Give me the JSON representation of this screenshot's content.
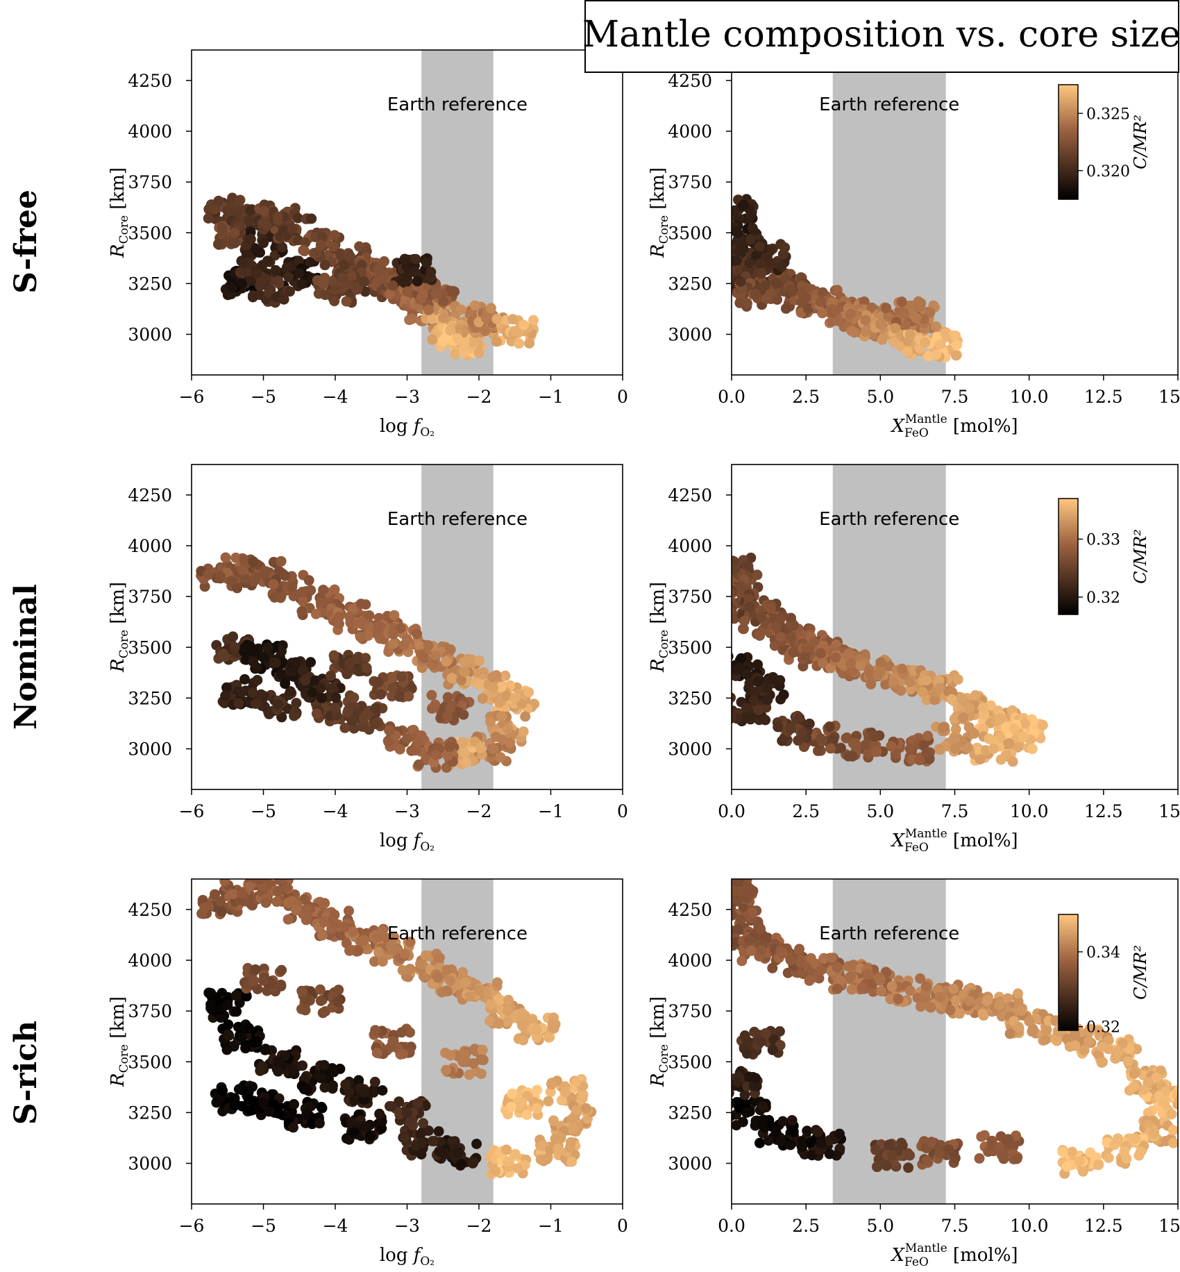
{
  "title": "Mantle  composition vs. core size",
  "rows": [
    {
      "label": "S-free"
    },
    {
      "label": "Nominal"
    },
    {
      "label": "S-rich"
    }
  ],
  "band_label": "Earth reference",
  "colors": {
    "band": "#c0c0c0",
    "cmap_low": "#000000",
    "cmap_mid": "#9c6140",
    "cmap_high": "#ffc77f",
    "axis": "#000000",
    "background": "#ffffff"
  },
  "chart_data": [
    {
      "type": "scatter",
      "row": 0,
      "col": 0,
      "xlabel": "log f_O2",
      "ylabel": "R_Core [km]",
      "xlim": [
        -6,
        0
      ],
      "ylim": [
        2800,
        4400
      ],
      "xticks": [
        -6,
        -5,
        -4,
        -3,
        -2,
        -1,
        0
      ],
      "xtick_labels": [
        "−6",
        "−5",
        "−4",
        "−3",
        "−2",
        "−1",
        "0"
      ],
      "yticks": [
        3000,
        3250,
        3500,
        3750,
        4000,
        4250
      ],
      "ytick_labels": [
        "3000",
        "3250",
        "3500",
        "3750",
        "4000",
        "4250"
      ],
      "band": [
        -2.8,
        -1.8
      ],
      "band_label": "Earth reference",
      "points": [
        [
          -5.5,
          3610
        ],
        [
          -5.4,
          3500
        ],
        [
          -5.2,
          3560
        ],
        [
          -5.0,
          3450
        ],
        [
          -4.8,
          3580
        ],
        [
          -5.3,
          3250
        ],
        [
          -4.6,
          3520
        ],
        [
          -4.5,
          3300
        ],
        [
          -4.2,
          3440
        ],
        [
          -4.0,
          3220
        ],
        [
          -3.8,
          3380
        ],
        [
          -3.6,
          3260
        ],
        [
          -3.4,
          3320
        ],
        [
          -3.2,
          3240
        ],
        [
          -3.0,
          3210
        ],
        [
          -2.8,
          3180
        ],
        [
          -2.7,
          3120
        ],
        [
          -2.5,
          3080
        ],
        [
          -2.4,
          3020
        ],
        [
          -2.3,
          2980
        ],
        [
          -2.2,
          2960
        ],
        [
          -2.0,
          3060
        ],
        [
          -1.9,
          3080
        ],
        [
          -1.5,
          3015
        ],
        [
          -2.6,
          3200
        ],
        [
          -5.1,
          3300
        ],
        [
          -4.9,
          3220
        ],
        [
          -3.9,
          3280
        ],
        [
          -2.9,
          3310
        ]
      ],
      "point_colors": [
        0.35,
        0.45,
        0.3,
        0.2,
        0.4,
        0.1,
        0.35,
        0.15,
        0.45,
        0.4,
        0.4,
        0.35,
        0.5,
        0.45,
        0.55,
        0.6,
        0.65,
        0.8,
        0.9,
        0.95,
        0.95,
        0.85,
        0.7,
        0.9,
        0.55,
        0.25,
        0.3,
        0.4,
        0.2
      ],
      "colorbar": null
    },
    {
      "type": "scatter",
      "row": 0,
      "col": 1,
      "xlabel": "X_FeO^Mantle [mol%]",
      "ylabel": "R_Core [km]",
      "xlim": [
        0,
        15
      ],
      "ylim": [
        2800,
        4400
      ],
      "xticks": [
        0,
        2.5,
        5,
        7.5,
        10,
        12.5,
        15
      ],
      "xtick_labels": [
        "0.0",
        "2.5",
        "5.0",
        "7.5",
        "10.0",
        "12.5",
        "15.0"
      ],
      "yticks": [
        3000,
        3250,
        3500,
        3750,
        4000,
        4250
      ],
      "ytick_labels": [
        "3000",
        "3250",
        "3500",
        "3750",
        "4000",
        "4250"
      ],
      "band": [
        3.4,
        7.2
      ],
      "band_label": "Earth reference",
      "points": [
        [
          0.1,
          3610
        ],
        [
          0.2,
          3500
        ],
        [
          0.4,
          3420
        ],
        [
          0.6,
          3350
        ],
        [
          0.3,
          3260
        ],
        [
          1.0,
          3300
        ],
        [
          1.5,
          3250
        ],
        [
          2.0,
          3220
        ],
        [
          2.5,
          3180
        ],
        [
          3.0,
          3160
        ],
        [
          3.5,
          3120
        ],
        [
          4.0,
          3100
        ],
        [
          4.5,
          3070
        ],
        [
          5.0,
          3050
        ],
        [
          5.5,
          3030
        ],
        [
          6.0,
          3000
        ],
        [
          6.5,
          2960
        ],
        [
          7.0,
          2950
        ],
        [
          6.2,
          3080
        ],
        [
          5.8,
          3100
        ],
        [
          1.2,
          3380
        ],
        [
          0.8,
          3200
        ]
      ],
      "point_colors": [
        0.2,
        0.15,
        0.2,
        0.25,
        0.3,
        0.35,
        0.4,
        0.45,
        0.5,
        0.55,
        0.6,
        0.65,
        0.7,
        0.75,
        0.8,
        0.85,
        0.9,
        0.95,
        0.7,
        0.65,
        0.25,
        0.45
      ],
      "colorbar": {
        "label": "C/MR²",
        "ticks": [
          0.32,
          0.325
        ],
        "tick_labels": [
          "0.320",
          "0.325"
        ],
        "range": [
          0.3175,
          0.3275
        ]
      }
    },
    {
      "type": "scatter",
      "row": 1,
      "col": 0,
      "xlabel": "log f_O2",
      "ylabel": "R_Core [km]",
      "xlim": [
        -6,
        0
      ],
      "ylim": [
        2800,
        4400
      ],
      "xticks": [
        -6,
        -5,
        -4,
        -3,
        -2,
        -1,
        0
      ],
      "xtick_labels": [
        "−6",
        "−5",
        "−4",
        "−3",
        "−2",
        "−1",
        "0"
      ],
      "yticks": [
        3000,
        3250,
        3500,
        3750,
        4000,
        4250
      ],
      "ytick_labels": [
        "3000",
        "3250",
        "3500",
        "3750",
        "4000",
        "4250"
      ],
      "band": [
        -2.8,
        -1.8
      ],
      "band_label": "Earth reference",
      "points": [
        [
          -5.6,
          3850
        ],
        [
          -5.3,
          3880
        ],
        [
          -5.0,
          3860
        ],
        [
          -4.6,
          3800
        ],
        [
          -4.2,
          3720
        ],
        [
          -3.8,
          3650
        ],
        [
          -3.4,
          3600
        ],
        [
          -3.0,
          3540
        ],
        [
          -2.6,
          3460
        ],
        [
          -2.2,
          3380
        ],
        [
          -1.8,
          3300
        ],
        [
          -1.5,
          3250
        ],
        [
          -1.6,
          3100
        ],
        [
          -1.8,
          3000
        ],
        [
          -2.2,
          2980
        ],
        [
          -2.6,
          2970
        ],
        [
          -3.0,
          3050
        ],
        [
          -3.6,
          3150
        ],
        [
          -4.0,
          3200
        ],
        [
          -4.8,
          3220
        ],
        [
          -5.3,
          3280
        ],
        [
          -5.4,
          3500
        ],
        [
          -5.0,
          3450
        ],
        [
          -4.6,
          3380
        ],
        [
          -4.2,
          3300
        ],
        [
          -3.8,
          3420
        ],
        [
          -3.2,
          3300
        ],
        [
          -2.4,
          3200
        ]
      ],
      "point_colors": [
        0.5,
        0.55,
        0.5,
        0.5,
        0.55,
        0.6,
        0.6,
        0.65,
        0.7,
        0.8,
        0.85,
        0.9,
        0.8,
        0.7,
        0.9,
        0.6,
        0.55,
        0.4,
        0.35,
        0.25,
        0.2,
        0.3,
        0.1,
        0.15,
        0.2,
        0.35,
        0.45,
        0.55
      ],
      "colorbar": null
    },
    {
      "type": "scatter",
      "row": 1,
      "col": 1,
      "xlabel": "X_FeO^Mantle [mol%]",
      "ylabel": "R_Core [km]",
      "xlim": [
        0,
        15
      ],
      "ylim": [
        2800,
        4400
      ],
      "xticks": [
        0,
        2.5,
        5,
        7.5,
        10,
        12.5,
        15
      ],
      "xtick_labels": [
        "0.0",
        "2.5",
        "5.0",
        "7.5",
        "10.0",
        "12.5",
        "15.0"
      ],
      "yticks": [
        3000,
        3250,
        3500,
        3750,
        4000,
        4250
      ],
      "ytick_labels": [
        "3000",
        "3250",
        "3500",
        "3750",
        "4000",
        "4250"
      ],
      "band": [
        3.4,
        7.2
      ],
      "band_label": "Earth reference",
      "points": [
        [
          0.1,
          3880
        ],
        [
          0.3,
          3800
        ],
        [
          0.6,
          3700
        ],
        [
          1.0,
          3650
        ],
        [
          1.5,
          3600
        ],
        [
          2.0,
          3550
        ],
        [
          2.5,
          3500
        ],
        [
          3.0,
          3470
        ],
        [
          3.5,
          3450
        ],
        [
          4.0,
          3420
        ],
        [
          5.0,
          3380
        ],
        [
          6.0,
          3330
        ],
        [
          7.0,
          3300
        ],
        [
          8.0,
          3200
        ],
        [
          9.0,
          3150
        ],
        [
          9.5,
          3100
        ],
        [
          9.8,
          3060
        ],
        [
          8.8,
          3000
        ],
        [
          7.5,
          3050
        ],
        [
          6.0,
          3000
        ],
        [
          4.5,
          3020
        ],
        [
          3.0,
          3050
        ],
        [
          2.0,
          3100
        ],
        [
          0.5,
          3200
        ],
        [
          0.3,
          3400
        ],
        [
          1.2,
          3300
        ]
      ],
      "point_colors": [
        0.4,
        0.45,
        0.4,
        0.45,
        0.5,
        0.5,
        0.55,
        0.55,
        0.6,
        0.65,
        0.7,
        0.75,
        0.8,
        0.85,
        0.9,
        0.95,
        0.95,
        0.9,
        0.8,
        0.55,
        0.5,
        0.45,
        0.35,
        0.25,
        0.15,
        0.2
      ],
      "colorbar": {
        "label": "C/MR²",
        "ticks": [
          0.32,
          0.33
        ],
        "tick_labels": [
          "0.32",
          "0.33"
        ],
        "range": [
          0.317,
          0.337
        ]
      }
    },
    {
      "type": "scatter",
      "row": 2,
      "col": 0,
      "xlabel": "log f_O2",
      "ylabel": "R_Core [km]",
      "xlim": [
        -6,
        0
      ],
      "ylim": [
        2800,
        4400
      ],
      "xticks": [
        -6,
        -5,
        -4,
        -3,
        -2,
        -1,
        0
      ],
      "xtick_labels": [
        "−6",
        "−5",
        "−4",
        "−3",
        "−2",
        "−1",
        "0"
      ],
      "yticks": [
        3000,
        3250,
        3500,
        3750,
        4000,
        4250
      ],
      "ytick_labels": [
        "3000",
        "3250",
        "3500",
        "3750",
        "4000",
        "4250"
      ],
      "band": [
        -2.8,
        -1.8
      ],
      "band_label": "Earth reference",
      "points": [
        [
          -5.6,
          4290
        ],
        [
          -5.3,
          4330
        ],
        [
          -4.8,
          4340
        ],
        [
          -4.4,
          4250
        ],
        [
          -4.0,
          4180
        ],
        [
          -3.6,
          4100
        ],
        [
          -3.2,
          4050
        ],
        [
          -2.8,
          3980
        ],
        [
          -2.4,
          3900
        ],
        [
          -2.0,
          3850
        ],
        [
          -1.6,
          3750
        ],
        [
          -1.2,
          3660
        ],
        [
          -0.8,
          3350
        ],
        [
          -0.7,
          3220
        ],
        [
          -0.9,
          3070
        ],
        [
          -1.6,
          3010
        ],
        [
          -2.3,
          3050
        ],
        [
          -2.8,
          3100
        ],
        [
          -3.6,
          3180
        ],
        [
          -4.4,
          3240
        ],
        [
          -5.0,
          3300
        ],
        [
          -5.4,
          3320
        ],
        [
          -5.5,
          3780
        ],
        [
          -5.3,
          3620
        ],
        [
          -4.8,
          3500
        ],
        [
          -4.2,
          3420
        ],
        [
          -3.6,
          3350
        ],
        [
          -3.0,
          3250
        ],
        [
          -1.4,
          3300
        ],
        [
          -5.0,
          3900
        ],
        [
          -4.2,
          3800
        ],
        [
          -3.2,
          3600
        ],
        [
          -2.2,
          3500
        ]
      ],
      "point_colors": [
        0.5,
        0.55,
        0.55,
        0.6,
        0.6,
        0.65,
        0.7,
        0.75,
        0.75,
        0.8,
        0.85,
        0.9,
        0.9,
        0.85,
        0.9,
        0.95,
        0.15,
        0.2,
        0.1,
        0.05,
        0.05,
        0.02,
        0.05,
        0.05,
        0.1,
        0.1,
        0.15,
        0.25,
        0.95,
        0.45,
        0.45,
        0.55,
        0.7
      ],
      "colorbar": null
    },
    {
      "type": "scatter",
      "row": 2,
      "col": 1,
      "xlabel": "X_FeO^Mantle [mol%]",
      "ylabel": "R_Core [km]",
      "xlim": [
        0,
        15
      ],
      "ylim": [
        2800,
        4400
      ],
      "xticks": [
        0,
        2.5,
        5,
        7.5,
        10,
        12.5,
        15
      ],
      "xtick_labels": [
        "0.0",
        "2.5",
        "5.0",
        "7.5",
        "10.0",
        "12.5",
        "15.0"
      ],
      "yticks": [
        3000,
        3250,
        3500,
        3750,
        4000,
        4250
      ],
      "ytick_labels": [
        "3000",
        "3250",
        "3500",
        "3750",
        "4000",
        "4250"
      ],
      "band": [
        3.4,
        7.2
      ],
      "band_label": "Earth reference",
      "points": [
        [
          0.1,
          4340
        ],
        [
          0.3,
          4200
        ],
        [
          0.6,
          4100
        ],
        [
          1.0,
          4050
        ],
        [
          2.0,
          4000
        ],
        [
          3.0,
          3950
        ],
        [
          4.0,
          3920
        ],
        [
          5.0,
          3900
        ],
        [
          6.0,
          3850
        ],
        [
          7.0,
          3820
        ],
        [
          8.0,
          3800
        ],
        [
          9.0,
          3780
        ],
        [
          10.0,
          3700
        ],
        [
          11.0,
          3650
        ],
        [
          12.0,
          3600
        ],
        [
          13.0,
          3550
        ],
        [
          14.0,
          3400
        ],
        [
          14.5,
          3300
        ],
        [
          14.2,
          3150
        ],
        [
          13.2,
          3060
        ],
        [
          11.7,
          3010
        ],
        [
          9.0,
          3080
        ],
        [
          7.0,
          3050
        ],
        [
          5.4,
          3040
        ],
        [
          3.0,
          3100
        ],
        [
          1.5,
          3150
        ],
        [
          0.5,
          3250
        ],
        [
          0.2,
          3400
        ],
        [
          1.0,
          3600
        ]
      ],
      "point_colors": [
        0.5,
        0.5,
        0.5,
        0.55,
        0.55,
        0.6,
        0.65,
        0.65,
        0.7,
        0.7,
        0.75,
        0.8,
        0.8,
        0.85,
        0.85,
        0.9,
        0.9,
        0.95,
        0.9,
        0.95,
        0.95,
        0.55,
        0.5,
        0.4,
        0.1,
        0.05,
        0.05,
        0.2,
        0.3
      ],
      "colorbar": {
        "label": "C/MR²",
        "ticks": [
          0.32,
          0.34
        ],
        "tick_labels": [
          "0.32",
          "0.34"
        ],
        "range": [
          0.319,
          0.35
        ]
      }
    }
  ]
}
